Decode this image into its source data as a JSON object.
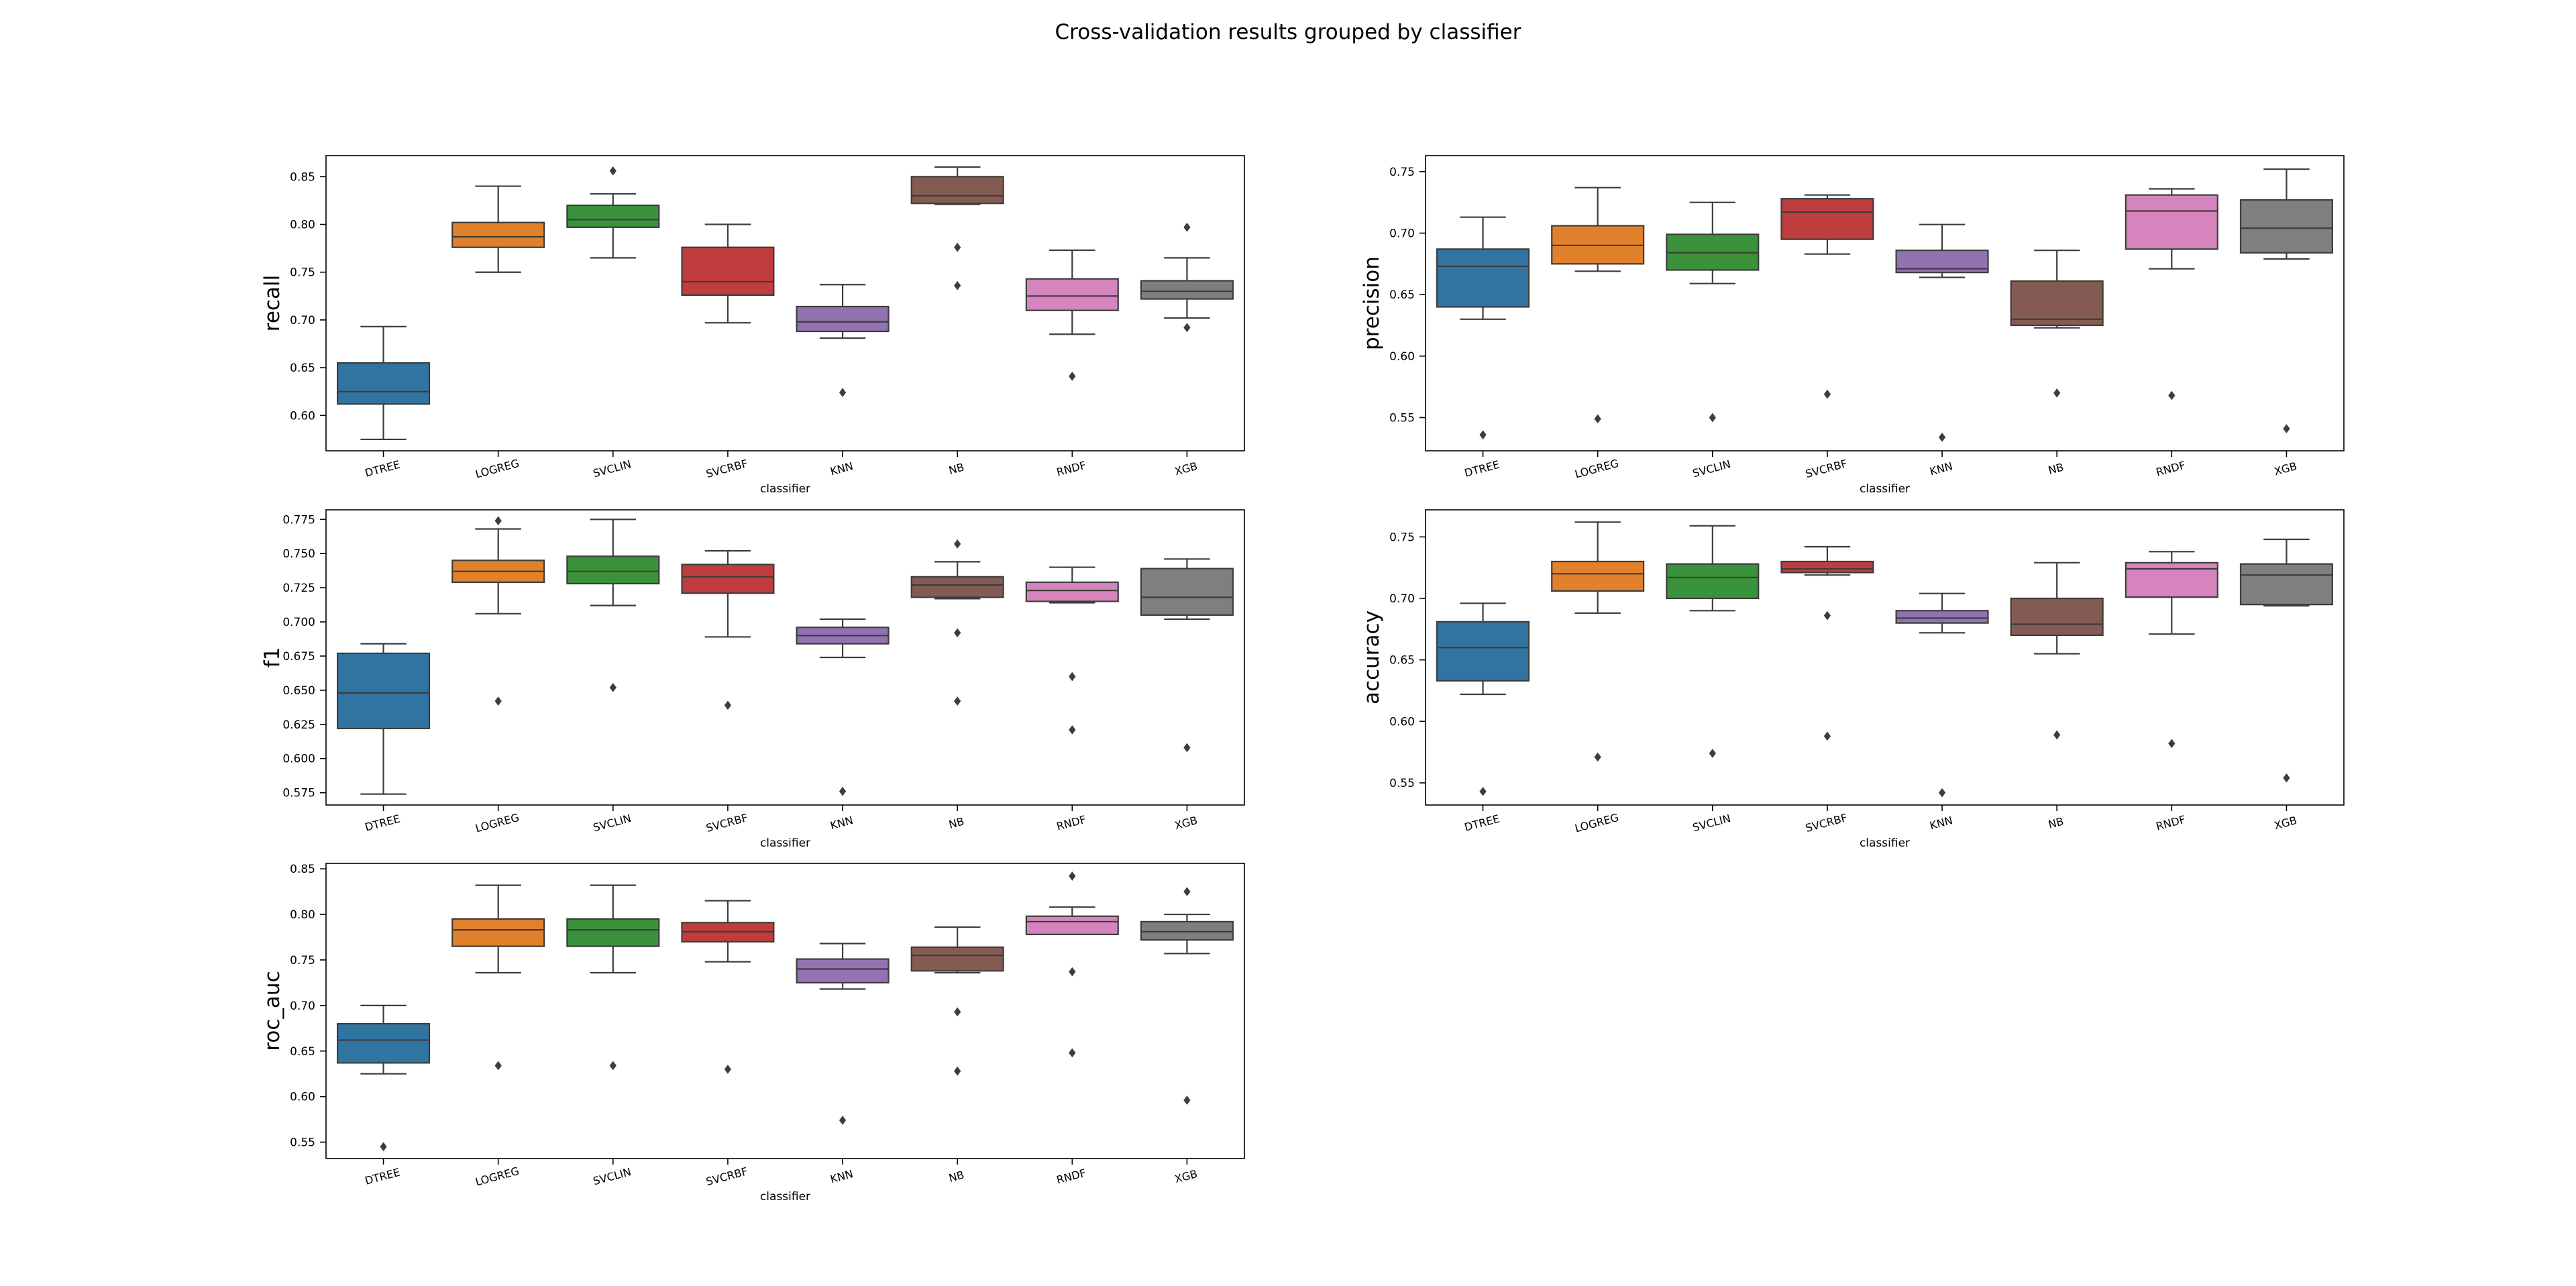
{
  "figure": {
    "title": "Cross-validation results grouped by classifier"
  },
  "palette": {
    "DTREE": "#3274a1",
    "LOGREG": "#e1812c",
    "SVCLIN": "#3a923a",
    "SVCRBF": "#c03d3e",
    "KNN": "#9372b2",
    "NB": "#845b53",
    "RNDF": "#d684bd",
    "XGB": "#7f7f7f"
  },
  "chart_data": [
    {
      "type": "box",
      "title": "",
      "xlabel": "classifier",
      "ylabel": "recall",
      "categories": [
        "DTREE",
        "LOGREG",
        "SVCLIN",
        "SVCRBF",
        "KNN",
        "NB",
        "RNDF",
        "XGB"
      ],
      "ylim": [
        0.563,
        0.872
      ],
      "yticks": [
        "0.60",
        "0.65",
        "0.70",
        "0.75",
        "0.80",
        "0.85"
      ],
      "boxes": [
        {
          "min": 0.575,
          "q1": 0.612,
          "median": 0.625,
          "q3": 0.655,
          "max": 0.693,
          "outliers": []
        },
        {
          "min": 0.75,
          "q1": 0.776,
          "median": 0.787,
          "q3": 0.802,
          "max": 0.84,
          "outliers": []
        },
        {
          "min": 0.765,
          "q1": 0.797,
          "median": 0.805,
          "q3": 0.82,
          "max": 0.832,
          "outliers": [
            0.856
          ]
        },
        {
          "min": 0.697,
          "q1": 0.726,
          "median": 0.74,
          "q3": 0.776,
          "max": 0.8,
          "outliers": []
        },
        {
          "min": 0.681,
          "q1": 0.688,
          "median": 0.698,
          "q3": 0.714,
          "max": 0.737,
          "outliers": [
            0.624
          ]
        },
        {
          "min": 0.821,
          "q1": 0.822,
          "median": 0.83,
          "q3": 0.85,
          "max": 0.86,
          "outliers": [
            0.776,
            0.736
          ]
        },
        {
          "min": 0.685,
          "q1": 0.71,
          "median": 0.725,
          "q3": 0.743,
          "max": 0.773,
          "outliers": [
            0.641
          ]
        },
        {
          "min": 0.702,
          "q1": 0.722,
          "median": 0.73,
          "q3": 0.741,
          "max": 0.765,
          "outliers": [
            0.797,
            0.692
          ]
        }
      ]
    },
    {
      "type": "box",
      "title": "",
      "xlabel": "classifier",
      "ylabel": "precision",
      "categories": [
        "DTREE",
        "LOGREG",
        "SVCLIN",
        "SVCRBF",
        "KNN",
        "NB",
        "RNDF",
        "XGB"
      ],
      "ylim": [
        0.523,
        0.763
      ],
      "yticks": [
        "0.55",
        "0.60",
        "0.65",
        "0.70",
        "0.75"
      ],
      "boxes": [
        {
          "min": 0.63,
          "q1": 0.64,
          "median": 0.673,
          "q3": 0.687,
          "max": 0.713,
          "outliers": [
            0.536
          ]
        },
        {
          "min": 0.669,
          "q1": 0.675,
          "median": 0.69,
          "q3": 0.706,
          "max": 0.737,
          "outliers": [
            0.549
          ]
        },
        {
          "min": 0.659,
          "q1": 0.67,
          "median": 0.684,
          "q3": 0.699,
          "max": 0.725,
          "outliers": [
            0.55
          ]
        },
        {
          "min": 0.683,
          "q1": 0.695,
          "median": 0.717,
          "q3": 0.728,
          "max": 0.731,
          "outliers": [
            0.569
          ]
        },
        {
          "min": 0.664,
          "q1": 0.668,
          "median": 0.671,
          "q3": 0.686,
          "max": 0.707,
          "outliers": [
            0.534
          ]
        },
        {
          "min": 0.623,
          "q1": 0.625,
          "median": 0.63,
          "q3": 0.661,
          "max": 0.686,
          "outliers": [
            0.57
          ]
        },
        {
          "min": 0.671,
          "q1": 0.687,
          "median": 0.718,
          "q3": 0.731,
          "max": 0.736,
          "outliers": [
            0.568
          ]
        },
        {
          "min": 0.679,
          "q1": 0.684,
          "median": 0.704,
          "q3": 0.727,
          "max": 0.752,
          "outliers": [
            0.541
          ]
        }
      ]
    },
    {
      "type": "box",
      "title": "",
      "xlabel": "classifier",
      "ylabel": "f1",
      "categories": [
        "DTREE",
        "LOGREG",
        "SVCLIN",
        "SVCRBF",
        "KNN",
        "NB",
        "RNDF",
        "XGB"
      ],
      "ylim": [
        0.566,
        0.782
      ],
      "yticks": [
        "0.575",
        "0.600",
        "0.625",
        "0.650",
        "0.675",
        "0.700",
        "0.725",
        "0.750",
        "0.775"
      ],
      "boxes": [
        {
          "min": 0.574,
          "q1": 0.622,
          "median": 0.648,
          "q3": 0.677,
          "max": 0.684,
          "outliers": []
        },
        {
          "min": 0.706,
          "q1": 0.729,
          "median": 0.737,
          "q3": 0.745,
          "max": 0.768,
          "outliers": [
            0.774,
            0.642
          ]
        },
        {
          "min": 0.712,
          "q1": 0.728,
          "median": 0.737,
          "q3": 0.748,
          "max": 0.775,
          "outliers": [
            0.652
          ]
        },
        {
          "min": 0.689,
          "q1": 0.721,
          "median": 0.733,
          "q3": 0.742,
          "max": 0.752,
          "outliers": [
            0.639
          ]
        },
        {
          "min": 0.674,
          "q1": 0.684,
          "median": 0.69,
          "q3": 0.696,
          "max": 0.702,
          "outliers": [
            0.576
          ]
        },
        {
          "min": 0.717,
          "q1": 0.718,
          "median": 0.727,
          "q3": 0.733,
          "max": 0.744,
          "outliers": [
            0.757,
            0.692,
            0.642
          ]
        },
        {
          "min": 0.714,
          "q1": 0.715,
          "median": 0.723,
          "q3": 0.729,
          "max": 0.74,
          "outliers": [
            0.66,
            0.621
          ]
        },
        {
          "min": 0.702,
          "q1": 0.705,
          "median": 0.718,
          "q3": 0.739,
          "max": 0.746,
          "outliers": [
            0.608
          ]
        }
      ]
    },
    {
      "type": "box",
      "title": "",
      "xlabel": "classifier",
      "ylabel": "accuracy",
      "categories": [
        "DTREE",
        "LOGREG",
        "SVCLIN",
        "SVCRBF",
        "KNN",
        "NB",
        "RNDF",
        "XGB"
      ],
      "ylim": [
        0.532,
        0.772
      ],
      "yticks": [
        "0.55",
        "0.60",
        "0.65",
        "0.70",
        "0.75"
      ],
      "boxes": [
        {
          "min": 0.622,
          "q1": 0.633,
          "median": 0.66,
          "q3": 0.681,
          "max": 0.696,
          "outliers": [
            0.543
          ]
        },
        {
          "min": 0.688,
          "q1": 0.706,
          "median": 0.72,
          "q3": 0.73,
          "max": 0.762,
          "outliers": [
            0.571
          ]
        },
        {
          "min": 0.69,
          "q1": 0.7,
          "median": 0.717,
          "q3": 0.728,
          "max": 0.759,
          "outliers": [
            0.574
          ]
        },
        {
          "min": 0.719,
          "q1": 0.721,
          "median": 0.724,
          "q3": 0.73,
          "max": 0.742,
          "outliers": [
            0.686,
            0.588
          ]
        },
        {
          "min": 0.672,
          "q1": 0.68,
          "median": 0.684,
          "q3": 0.69,
          "max": 0.704,
          "outliers": [
            0.542
          ]
        },
        {
          "min": 0.655,
          "q1": 0.67,
          "median": 0.679,
          "q3": 0.7,
          "max": 0.729,
          "outliers": [
            0.589
          ]
        },
        {
          "min": 0.671,
          "q1": 0.701,
          "median": 0.724,
          "q3": 0.729,
          "max": 0.738,
          "outliers": [
            0.582
          ]
        },
        {
          "min": 0.694,
          "q1": 0.695,
          "median": 0.719,
          "q3": 0.728,
          "max": 0.748,
          "outliers": [
            0.554
          ]
        }
      ]
    },
    {
      "type": "box",
      "title": "",
      "xlabel": "classifier",
      "ylabel": "roc_auc",
      "categories": [
        "DTREE",
        "LOGREG",
        "SVCLIN",
        "SVCRBF",
        "KNN",
        "NB",
        "RNDF",
        "XGB"
      ],
      "ylim": [
        0.532,
        0.856
      ],
      "yticks": [
        "0.55",
        "0.60",
        "0.65",
        "0.70",
        "0.75",
        "0.80",
        "0.85"
      ],
      "boxes": [
        {
          "min": 0.625,
          "q1": 0.637,
          "median": 0.662,
          "q3": 0.68,
          "max": 0.7,
          "outliers": [
            0.545
          ]
        },
        {
          "min": 0.736,
          "q1": 0.765,
          "median": 0.783,
          "q3": 0.795,
          "max": 0.832,
          "outliers": [
            0.634
          ]
        },
        {
          "min": 0.736,
          "q1": 0.765,
          "median": 0.783,
          "q3": 0.795,
          "max": 0.832,
          "outliers": [
            0.634
          ]
        },
        {
          "min": 0.748,
          "q1": 0.77,
          "median": 0.781,
          "q3": 0.791,
          "max": 0.815,
          "outliers": [
            0.63
          ]
        },
        {
          "min": 0.718,
          "q1": 0.725,
          "median": 0.74,
          "q3": 0.751,
          "max": 0.768,
          "outliers": [
            0.574
          ]
        },
        {
          "min": 0.736,
          "q1": 0.738,
          "median": 0.755,
          "q3": 0.764,
          "max": 0.786,
          "outliers": [
            0.693,
            0.628
          ]
        },
        {
          "min": 0.778,
          "q1": 0.778,
          "median": 0.792,
          "q3": 0.798,
          "max": 0.808,
          "outliers": [
            0.842,
            0.737,
            0.648
          ]
        },
        {
          "min": 0.757,
          "q1": 0.772,
          "median": 0.781,
          "q3": 0.792,
          "max": 0.8,
          "outliers": [
            0.825,
            0.596
          ]
        }
      ]
    }
  ]
}
